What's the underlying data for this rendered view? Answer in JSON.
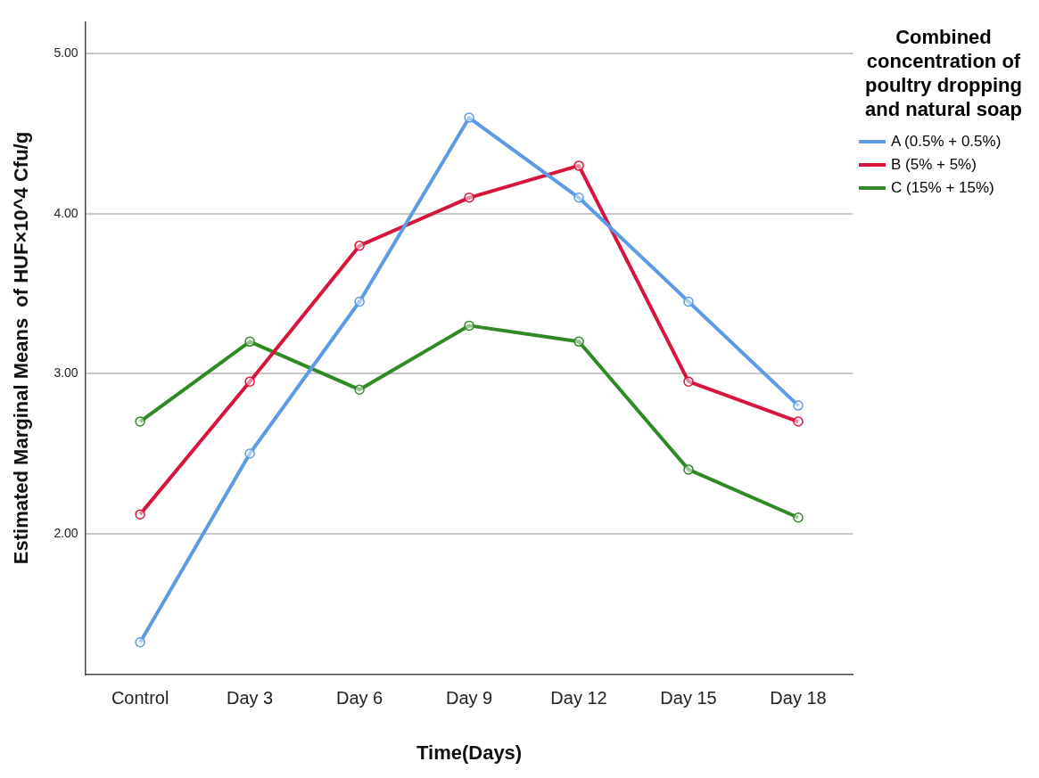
{
  "chart_data": {
    "type": "line",
    "xlabel": "Time(Days)",
    "ylabel": "Estimated Marginal Means  of HUF×10^4 Cfu/g",
    "legend_title": "Combined concentration of poultry dropping and natural soap",
    "categories": [
      "Control",
      "Day 3",
      "Day 6",
      "Day 9",
      "Day 12",
      "Day 15",
      "Day 18"
    ],
    "series": [
      {
        "name": "A (0.5% + 0.5%)",
        "color": "#5b9be6",
        "values": [
          1.32,
          2.5,
          3.45,
          4.6,
          4.1,
          3.45,
          2.8
        ]
      },
      {
        "name": "B (5% + 5%)",
        "color": "#d9143c",
        "values": [
          2.12,
          2.95,
          3.8,
          4.1,
          4.3,
          2.95,
          2.7
        ]
      },
      {
        "name": "C (15% + 15%)",
        "color": "#2e8a22",
        "values": [
          2.7,
          3.2,
          2.9,
          3.3,
          3.2,
          2.4,
          2.1
        ]
      }
    ],
    "ylim": [
      1.12,
      5.2
    ],
    "yticks": [
      {
        "value": 2,
        "label": "2.00"
      },
      {
        "value": 3,
        "label": "3.00"
      },
      {
        "value": 4,
        "label": "4.00"
      },
      {
        "value": 5,
        "label": "5.00"
      }
    ],
    "grid": "y",
    "legend": "right",
    "marker": "circle",
    "line_style": "solid"
  }
}
